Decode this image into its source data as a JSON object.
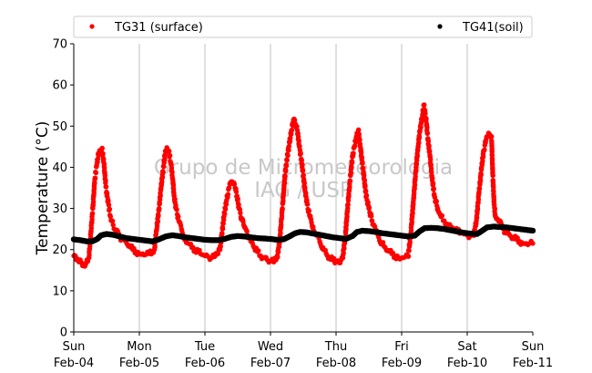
{
  "chart_data": {
    "type": "scatter",
    "title": "",
    "xlabel": "",
    "ylabel": "Temperature (°C)",
    "ylim": [
      0,
      70
    ],
    "yticks": [
      0,
      10,
      20,
      30,
      40,
      50,
      60,
      70
    ],
    "xlim_days": [
      0,
      7
    ],
    "xticks": [
      {
        "day": "Sun",
        "date": "Feb-04"
      },
      {
        "day": "Mon",
        "date": "Feb-05"
      },
      {
        "day": "Tue",
        "date": "Feb-06"
      },
      {
        "day": "Wed",
        "date": "Feb-07"
      },
      {
        "day": "Thu",
        "date": "Feb-08"
      },
      {
        "day": "Fri",
        "date": "Feb-09"
      },
      {
        "day": "Sat",
        "date": "Feb-10"
      },
      {
        "day": "Sun",
        "date": "Feb-11"
      }
    ],
    "grid": "vertical",
    "legend_placement": "top",
    "watermark": [
      "Grupo de Micrometeorologia",
      "IAG / USP"
    ],
    "series": [
      {
        "name": "TG31 (surface)",
        "color": "#ff0000",
        "marker": "dot",
        "points": [
          [
            0.0,
            18.5
          ],
          [
            0.04,
            17.5
          ],
          [
            0.08,
            17.0
          ],
          [
            0.12,
            16.8
          ],
          [
            0.16,
            16.0
          ],
          [
            0.2,
            17.5
          ],
          [
            0.23,
            18.0
          ],
          [
            0.26,
            24.0
          ],
          [
            0.29,
            30.0
          ],
          [
            0.32,
            37.0
          ],
          [
            0.35,
            40.5
          ],
          [
            0.38,
            43.5
          ],
          [
            0.41,
            44.0
          ],
          [
            0.43,
            44.5
          ],
          [
            0.46,
            41.0
          ],
          [
            0.48,
            37.0
          ],
          [
            0.5,
            34.0
          ],
          [
            0.53,
            31.0
          ],
          [
            0.56,
            28.0
          ],
          [
            0.6,
            26.0
          ],
          [
            0.65,
            24.5
          ],
          [
            0.7,
            23.0
          ],
          [
            0.75,
            22.5
          ],
          [
            0.8,
            21.8
          ],
          [
            0.85,
            21.0
          ],
          [
            0.9,
            20.0
          ],
          [
            0.95,
            19.5
          ],
          [
            1.0,
            19.0
          ],
          [
            1.05,
            19.0
          ],
          [
            1.1,
            18.8
          ],
          [
            1.15,
            19.0
          ],
          [
            1.2,
            19.5
          ],
          [
            1.23,
            20.0
          ],
          [
            1.26,
            24.5
          ],
          [
            1.3,
            30.0
          ],
          [
            1.33,
            35.0
          ],
          [
            1.36,
            39.0
          ],
          [
            1.39,
            43.0
          ],
          [
            1.42,
            44.8
          ],
          [
            1.45,
            44.0
          ],
          [
            1.48,
            41.0
          ],
          [
            1.51,
            37.0
          ],
          [
            1.53,
            33.0
          ],
          [
            1.56,
            30.0
          ],
          [
            1.6,
            27.0
          ],
          [
            1.65,
            24.5
          ],
          [
            1.7,
            22.5
          ],
          [
            1.75,
            21.5
          ],
          [
            1.8,
            20.5
          ],
          [
            1.85,
            20.0
          ],
          [
            1.9,
            19.5
          ],
          [
            1.95,
            18.8
          ],
          [
            2.0,
            18.5
          ],
          [
            2.05,
            18.3
          ],
          [
            2.1,
            18.0
          ],
          [
            2.15,
            18.3
          ],
          [
            2.2,
            19.0
          ],
          [
            2.23,
            20.0
          ],
          [
            2.26,
            24.0
          ],
          [
            2.29,
            28.0
          ],
          [
            2.33,
            32.0
          ],
          [
            2.37,
            35.0
          ],
          [
            2.4,
            36.5
          ],
          [
            2.43,
            36.0
          ],
          [
            2.46,
            35.0
          ],
          [
            2.49,
            33.0
          ],
          [
            2.52,
            30.0
          ],
          [
            2.56,
            27.5
          ],
          [
            2.6,
            25.5
          ],
          [
            2.65,
            23.5
          ],
          [
            2.7,
            22.0
          ],
          [
            2.75,
            20.5
          ],
          [
            2.8,
            19.5
          ],
          [
            2.85,
            18.5
          ],
          [
            2.9,
            18.0
          ],
          [
            2.95,
            17.5
          ],
          [
            3.0,
            17.2
          ],
          [
            3.05,
            17.0
          ],
          [
            3.1,
            18.0
          ],
          [
            3.14,
            22.0
          ],
          [
            3.18,
            30.0
          ],
          [
            3.22,
            38.0
          ],
          [
            3.26,
            43.0
          ],
          [
            3.29,
            46.0
          ],
          [
            3.32,
            49.0
          ],
          [
            3.35,
            51.5
          ],
          [
            3.38,
            50.5
          ],
          [
            3.41,
            49.0
          ],
          [
            3.44,
            45.0
          ],
          [
            3.47,
            42.0
          ],
          [
            3.5,
            38.0
          ],
          [
            3.53,
            34.0
          ],
          [
            3.56,
            31.0
          ],
          [
            3.6,
            28.0
          ],
          [
            3.65,
            25.5
          ],
          [
            3.7,
            23.5
          ],
          [
            3.75,
            22.0
          ],
          [
            3.8,
            20.5
          ],
          [
            3.85,
            19.0
          ],
          [
            3.9,
            18.0
          ],
          [
            3.95,
            17.5
          ],
          [
            4.0,
            17.0
          ],
          [
            4.05,
            16.8
          ],
          [
            4.1,
            18.0
          ],
          [
            4.14,
            23.0
          ],
          [
            4.18,
            31.0
          ],
          [
            4.22,
            38.0
          ],
          [
            4.25,
            42.5
          ],
          [
            4.28,
            45.0
          ],
          [
            4.31,
            47.5
          ],
          [
            4.34,
            49.0
          ],
          [
            4.37,
            45.0
          ],
          [
            4.4,
            41.0
          ],
          [
            4.43,
            37.0
          ],
          [
            4.46,
            33.0
          ],
          [
            4.5,
            30.0
          ],
          [
            4.55,
            27.0
          ],
          [
            4.6,
            24.5
          ],
          [
            4.65,
            23.0
          ],
          [
            4.7,
            21.5
          ],
          [
            4.75,
            20.5
          ],
          [
            4.8,
            19.8
          ],
          [
            4.85,
            19.0
          ],
          [
            4.9,
            18.5
          ],
          [
            4.95,
            18.0
          ],
          [
            5.0,
            18.0
          ],
          [
            5.05,
            18.2
          ],
          [
            5.1,
            18.5
          ],
          [
            5.14,
            24.0
          ],
          [
            5.18,
            32.0
          ],
          [
            5.22,
            40.0
          ],
          [
            5.25,
            45.0
          ],
          [
            5.28,
            49.0
          ],
          [
            5.31,
            52.0
          ],
          [
            5.34,
            55.0
          ],
          [
            5.37,
            52.0
          ],
          [
            5.4,
            47.0
          ],
          [
            5.43,
            43.0
          ],
          [
            5.46,
            38.0
          ],
          [
            5.5,
            33.0
          ],
          [
            5.55,
            30.0
          ],
          [
            5.6,
            28.0
          ],
          [
            5.65,
            27.0
          ],
          [
            5.7,
            26.0
          ],
          [
            5.75,
            25.5
          ],
          [
            5.8,
            25.0
          ],
          [
            5.85,
            24.5
          ],
          [
            5.9,
            24.0
          ],
          [
            5.95,
            23.8
          ],
          [
            6.0,
            23.5
          ],
          [
            6.05,
            23.3
          ],
          [
            6.1,
            23.5
          ],
          [
            6.14,
            27.0
          ],
          [
            6.18,
            34.0
          ],
          [
            6.22,
            40.0
          ],
          [
            6.25,
            44.0
          ],
          [
            6.28,
            46.0
          ],
          [
            6.31,
            47.5
          ],
          [
            6.34,
            48.0
          ],
          [
            6.37,
            47.5
          ],
          [
            6.39,
            38.0
          ],
          [
            6.41,
            31.0
          ],
          [
            6.43,
            28.0
          ],
          [
            6.46,
            27.5
          ],
          [
            6.5,
            27.0
          ],
          [
            6.55,
            25.0
          ],
          [
            6.6,
            24.0
          ],
          [
            6.65,
            23.5
          ],
          [
            6.7,
            23.0
          ],
          [
            6.75,
            22.5
          ],
          [
            6.8,
            22.0
          ],
          [
            6.85,
            21.5
          ],
          [
            6.9,
            21.5
          ],
          [
            6.95,
            21.5
          ],
          [
            7.0,
            21.5
          ]
        ]
      },
      {
        "name": "TG41(soil)",
        "color": "#000000",
        "marker": "dot",
        "points": [
          [
            0.0,
            22.5
          ],
          [
            0.1,
            22.3
          ],
          [
            0.2,
            22.0
          ],
          [
            0.28,
            22.0
          ],
          [
            0.35,
            22.5
          ],
          [
            0.42,
            23.5
          ],
          [
            0.5,
            23.8
          ],
          [
            0.6,
            23.6
          ],
          [
            0.7,
            23.2
          ],
          [
            0.8,
            22.8
          ],
          [
            0.9,
            22.6
          ],
          [
            1.0,
            22.4
          ],
          [
            1.1,
            22.2
          ],
          [
            1.2,
            22.0
          ],
          [
            1.3,
            22.5
          ],
          [
            1.4,
            23.2
          ],
          [
            1.5,
            23.5
          ],
          [
            1.6,
            23.3
          ],
          [
            1.7,
            23.0
          ],
          [
            1.8,
            22.8
          ],
          [
            1.9,
            22.6
          ],
          [
            2.0,
            22.4
          ],
          [
            2.1,
            22.3
          ],
          [
            2.2,
            22.3
          ],
          [
            2.3,
            22.6
          ],
          [
            2.4,
            23.1
          ],
          [
            2.5,
            23.3
          ],
          [
            2.6,
            23.2
          ],
          [
            2.7,
            23.0
          ],
          [
            2.8,
            22.8
          ],
          [
            2.9,
            22.7
          ],
          [
            3.0,
            22.6
          ],
          [
            3.1,
            22.4
          ],
          [
            3.2,
            22.5
          ],
          [
            3.3,
            23.3
          ],
          [
            3.38,
            24.0
          ],
          [
            3.45,
            24.3
          ],
          [
            3.55,
            24.2
          ],
          [
            3.65,
            23.9
          ],
          [
            3.75,
            23.6
          ],
          [
            3.85,
            23.3
          ],
          [
            3.95,
            23.0
          ],
          [
            4.05,
            22.8
          ],
          [
            4.15,
            22.6
          ],
          [
            4.25,
            23.3
          ],
          [
            4.32,
            24.3
          ],
          [
            4.4,
            24.6
          ],
          [
            4.5,
            24.5
          ],
          [
            4.6,
            24.3
          ],
          [
            4.7,
            24.0
          ],
          [
            4.8,
            23.8
          ],
          [
            4.9,
            23.6
          ],
          [
            5.0,
            23.4
          ],
          [
            5.1,
            23.2
          ],
          [
            5.2,
            23.4
          ],
          [
            5.28,
            24.5
          ],
          [
            5.35,
            25.2
          ],
          [
            5.45,
            25.3
          ],
          [
            5.55,
            25.2
          ],
          [
            5.65,
            25.0
          ],
          [
            5.75,
            24.7
          ],
          [
            5.85,
            24.4
          ],
          [
            5.95,
            24.1
          ],
          [
            6.05,
            23.9
          ],
          [
            6.15,
            23.8
          ],
          [
            6.22,
            24.5
          ],
          [
            6.3,
            25.4
          ],
          [
            6.4,
            25.6
          ],
          [
            6.5,
            25.5
          ],
          [
            6.6,
            25.4
          ],
          [
            6.7,
            25.2
          ],
          [
            6.8,
            25.0
          ],
          [
            6.9,
            24.8
          ],
          [
            7.0,
            24.6
          ]
        ]
      }
    ]
  }
}
